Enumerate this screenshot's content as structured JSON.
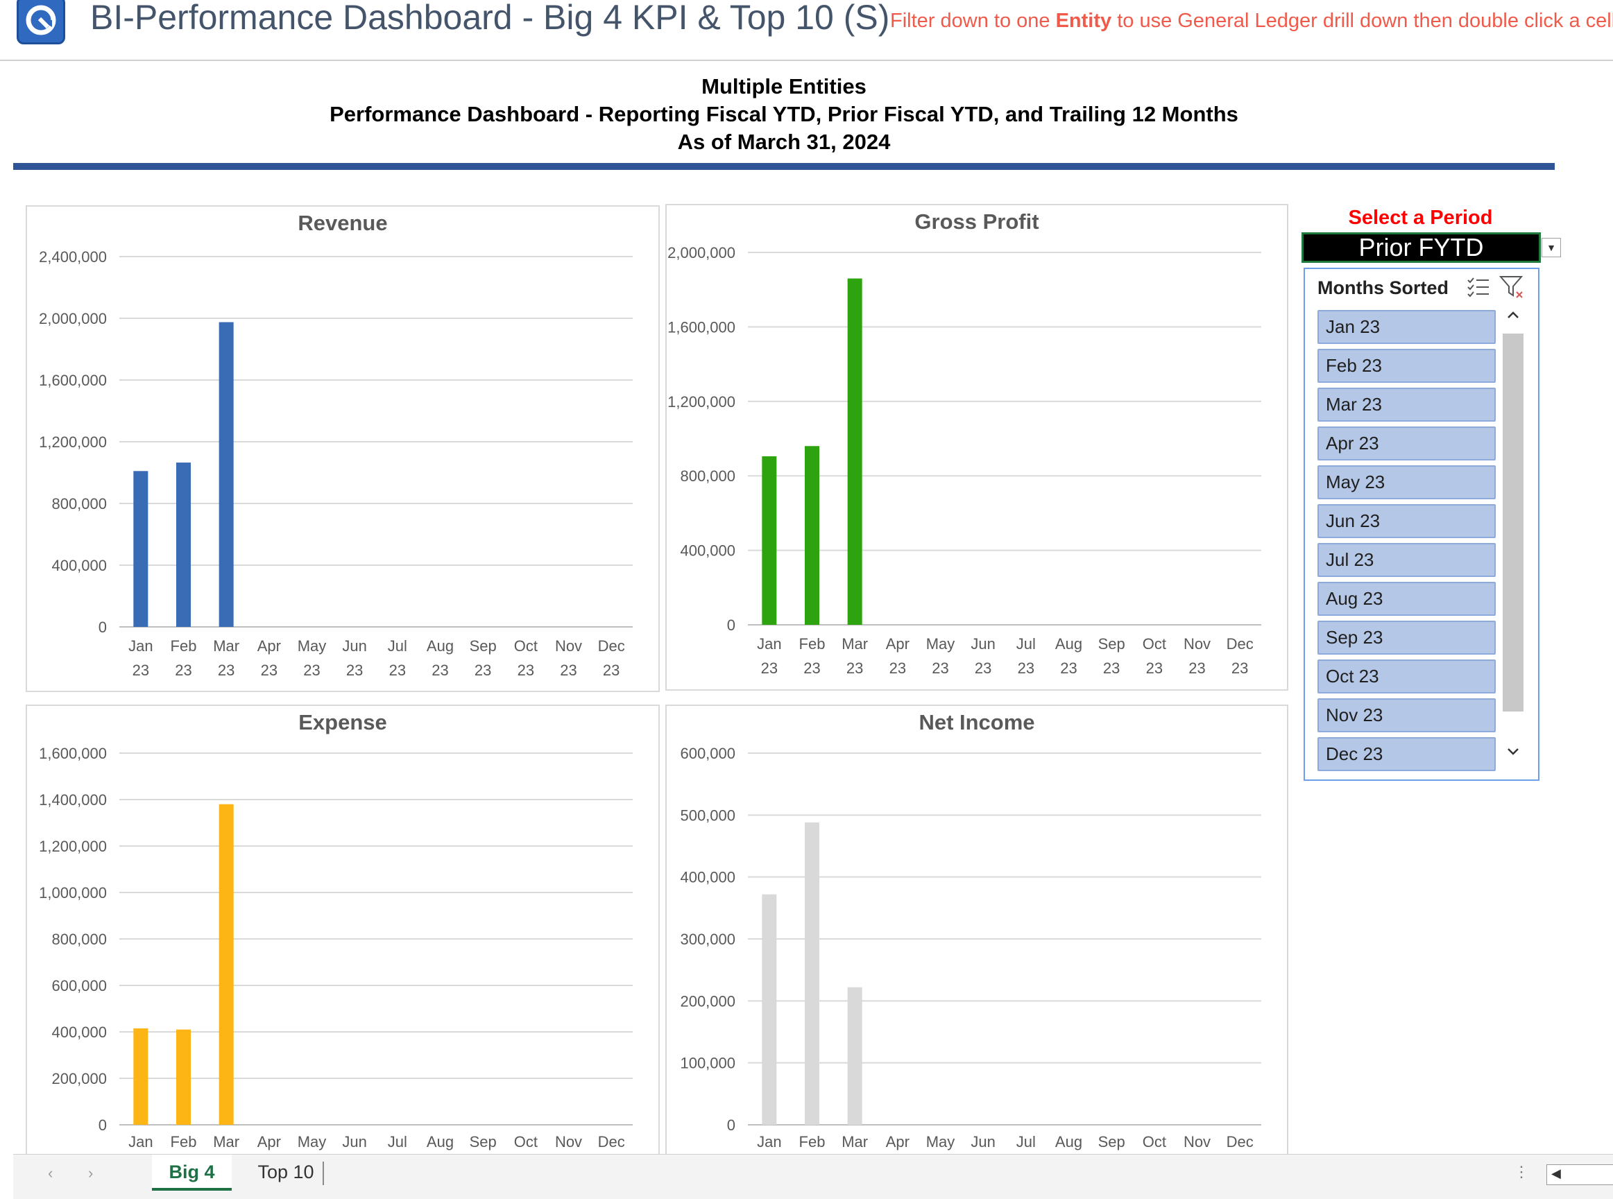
{
  "app": {
    "title": "BI-Performance Dashboard - Big 4 KPI & Top 10 (S)",
    "note_prefix": "Filter down to one ",
    "note_bold": "Entity",
    "note_suffix": " to use General Ledger drill down then double click a cell to"
  },
  "report": {
    "entity": "Multiple Entities",
    "subtitle": "Performance Dashboard - Reporting Fiscal YTD, Prior Fiscal YTD, and Trailing 12 Months",
    "as_of": "As of March 31, 2024"
  },
  "period_selector": {
    "label": "Select a Period",
    "value": "Prior FYTD"
  },
  "slicer": {
    "header": "Months Sorted",
    "items": [
      "Jan 23",
      "Feb 23",
      "Mar 23",
      "Apr 23",
      "May 23",
      "Jun 23",
      "Jul 23",
      "Aug 23",
      "Sep 23",
      "Oct 23",
      "Nov 23",
      "Dec 23"
    ]
  },
  "sheets": {
    "tabs": [
      "Big 4",
      "Top 10"
    ],
    "active": "Big 4"
  },
  "colors": {
    "revenue": "#3a6cb5",
    "gross_profit": "#2ea310",
    "expense": "#fdb515",
    "net_income": "#d9d9d9",
    "accent": "#2f5597"
  },
  "chart_data": [
    {
      "type": "bar",
      "title": "Revenue",
      "categories": [
        "Jan 23",
        "Feb 23",
        "Mar 23",
        "Apr 23",
        "May 23",
        "Jun 23",
        "Jul 23",
        "Aug 23",
        "Sep 23",
        "Oct 23",
        "Nov 23",
        "Dec 23"
      ],
      "values": [
        1010000,
        1065000,
        1975000,
        0,
        0,
        0,
        0,
        0,
        0,
        0,
        0,
        0
      ],
      "ylim": [
        0,
        2400000
      ],
      "yticks": [
        0,
        400000,
        800000,
        1200000,
        1600000,
        2000000,
        2400000
      ],
      "ytick_labels": [
        "0",
        "400,000",
        "800,000",
        "1,200,000",
        "1,600,000",
        "2,000,000",
        "2,400,000"
      ],
      "x_two_line": true,
      "grid": true
    },
    {
      "type": "bar",
      "title": "Gross Profit",
      "categories": [
        "Jan 23",
        "Feb 23",
        "Mar 23",
        "Apr 23",
        "May 23",
        "Jun 23",
        "Jul 23",
        "Aug 23",
        "Sep 23",
        "Oct 23",
        "Nov 23",
        "Dec 23"
      ],
      "values": [
        905000,
        960000,
        1860000,
        0,
        0,
        0,
        0,
        0,
        0,
        0,
        0,
        0
      ],
      "ylim": [
        0,
        2000000
      ],
      "yticks": [
        0,
        400000,
        800000,
        1200000,
        1600000,
        2000000
      ],
      "ytick_labels": [
        "0",
        "400,000",
        "800,000",
        "1,200,000",
        "1,600,000",
        "2,000,000"
      ],
      "x_two_line": true,
      "grid": true
    },
    {
      "type": "bar",
      "title": "Expense",
      "categories": [
        "Jan",
        "Feb",
        "Mar",
        "Apr",
        "May",
        "Jun",
        "Jul",
        "Aug",
        "Sep",
        "Oct",
        "Nov",
        "Dec"
      ],
      "values": [
        415000,
        410000,
        1380000,
        0,
        0,
        0,
        0,
        0,
        0,
        0,
        0,
        0
      ],
      "ylim": [
        0,
        1600000
      ],
      "yticks": [
        0,
        200000,
        400000,
        600000,
        800000,
        1000000,
        1200000,
        1400000,
        1600000
      ],
      "ytick_labels": [
        "0",
        "200,000",
        "400,000",
        "600,000",
        "800,000",
        "1,000,000",
        "1,200,000",
        "1,400,000",
        "1,600,000"
      ],
      "x_two_line": false,
      "grid": true
    },
    {
      "type": "bar",
      "title": "Net Income",
      "categories": [
        "Jan",
        "Feb",
        "Mar",
        "Apr",
        "May",
        "Jun",
        "Jul",
        "Aug",
        "Sep",
        "Oct",
        "Nov",
        "Dec"
      ],
      "values": [
        372000,
        488000,
        222000,
        0,
        0,
        0,
        0,
        0,
        0,
        0,
        0,
        0
      ],
      "ylim": [
        0,
        600000
      ],
      "yticks": [
        0,
        100000,
        200000,
        300000,
        400000,
        500000,
        600000
      ],
      "ytick_labels": [
        "0",
        "100,000",
        "200,000",
        "300,000",
        "400,000",
        "500,000",
        "600,000"
      ],
      "x_two_line": false,
      "grid": true
    }
  ]
}
